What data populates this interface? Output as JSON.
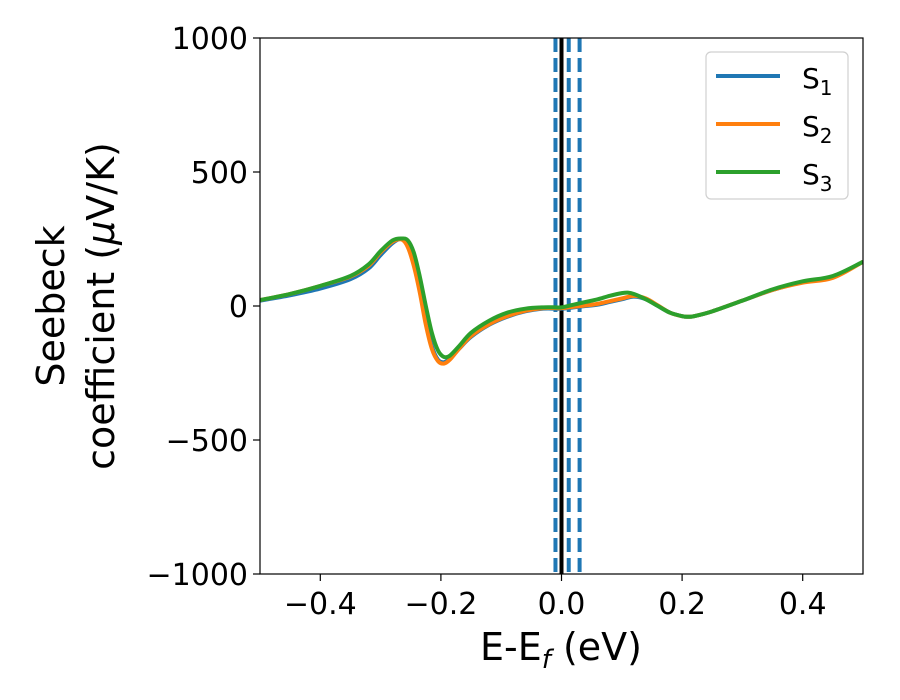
{
  "chart_data": {
    "type": "line",
    "title": "",
    "xlabel": {
      "main": "E-E",
      "sub": "f",
      "unit": " (eV)"
    },
    "ylabel": {
      "line1": "Seebeck",
      "line2_main": "coefficient  (",
      "line2_mu": "μ",
      "line2_unit": "V/K)"
    },
    "xlim": [
      -0.5,
      0.5
    ],
    "ylim": [
      -1000,
      1000
    ],
    "xticks": [
      -0.4,
      -0.2,
      0.0,
      0.2,
      0.4
    ],
    "xtick_labels": [
      "−0.4",
      "−0.2",
      "0.0",
      "0.2",
      "0.4"
    ],
    "yticks": [
      1000,
      500,
      0,
      -500,
      -1000
    ],
    "ytick_labels": [
      "1000",
      "500",
      "0",
      "−500",
      "−1000"
    ],
    "grid": false,
    "legend_placement": "top-right",
    "vlines": [
      {
        "x": -0.01,
        "style": "dashed",
        "color": "#1f77b4"
      },
      {
        "x": 0.012,
        "style": "dashed",
        "color": "#1f77b4"
      },
      {
        "x": 0.03,
        "style": "dashed",
        "color": "#1f77b4"
      },
      {
        "x": 0.0,
        "style": "solid",
        "color": "#000000"
      }
    ],
    "series": [
      {
        "name": "S",
        "sub": "1",
        "color": "#1f77b4",
        "x": [
          -0.5,
          -0.45,
          -0.4,
          -0.35,
          -0.32,
          -0.3,
          -0.28,
          -0.265,
          -0.255,
          -0.245,
          -0.235,
          -0.225,
          -0.215,
          -0.205,
          -0.195,
          -0.185,
          -0.17,
          -0.15,
          -0.12,
          -0.09,
          -0.06,
          -0.03,
          -0.01,
          0.0,
          0.02,
          0.04,
          0.06,
          0.08,
          0.1,
          0.12,
          0.14,
          0.16,
          0.18,
          0.2,
          0.21,
          0.22,
          0.25,
          0.3,
          0.35,
          0.4,
          0.45,
          0.5
        ],
        "y": [
          20,
          40,
          65,
          100,
          140,
          190,
          235,
          250,
          225,
          160,
          60,
          -60,
          -150,
          -200,
          -210,
          -195,
          -160,
          -115,
          -70,
          -40,
          -20,
          -10,
          -10,
          -10,
          -5,
          0,
          5,
          15,
          25,
          35,
          25,
          0,
          -25,
          -38,
          -40,
          -38,
          -20,
          20,
          60,
          90,
          110,
          165
        ]
      },
      {
        "name": "S",
        "sub": "2",
        "color": "#ff7f0e",
        "x": [
          -0.5,
          -0.45,
          -0.4,
          -0.35,
          -0.32,
          -0.3,
          -0.28,
          -0.265,
          -0.255,
          -0.245,
          -0.235,
          -0.225,
          -0.215,
          -0.205,
          -0.195,
          -0.185,
          -0.17,
          -0.15,
          -0.12,
          -0.09,
          -0.06,
          -0.03,
          -0.01,
          0.0,
          0.02,
          0.04,
          0.06,
          0.08,
          0.1,
          0.12,
          0.14,
          0.16,
          0.18,
          0.2,
          0.21,
          0.22,
          0.25,
          0.3,
          0.35,
          0.4,
          0.45,
          0.5
        ],
        "y": [
          22,
          45,
          75,
          110,
          150,
          200,
          240,
          248,
          220,
          150,
          50,
          -70,
          -160,
          -205,
          -215,
          -200,
          -160,
          -112,
          -68,
          -38,
          -18,
          -8,
          -8,
          -8,
          -3,
          2,
          8,
          18,
          28,
          38,
          28,
          2,
          -25,
          -38,
          -40,
          -38,
          -20,
          20,
          60,
          87,
          105,
          165
        ]
      },
      {
        "name": "S",
        "sub": "3",
        "color": "#2ca02c",
        "x": [
          -0.5,
          -0.45,
          -0.4,
          -0.35,
          -0.32,
          -0.3,
          -0.28,
          -0.265,
          -0.255,
          -0.245,
          -0.235,
          -0.225,
          -0.215,
          -0.205,
          -0.195,
          -0.185,
          -0.17,
          -0.15,
          -0.12,
          -0.09,
          -0.06,
          -0.03,
          -0.01,
          0.0,
          0.02,
          0.04,
          0.06,
          0.08,
          0.1,
          0.11,
          0.12,
          0.14,
          0.16,
          0.18,
          0.2,
          0.21,
          0.22,
          0.25,
          0.3,
          0.35,
          0.4,
          0.45,
          0.5
        ],
        "y": [
          22,
          45,
          75,
          112,
          155,
          205,
          245,
          252,
          245,
          200,
          110,
          0,
          -100,
          -165,
          -190,
          -185,
          -150,
          -100,
          -55,
          -25,
          -10,
          -5,
          -5,
          -5,
          5,
          15,
          25,
          38,
          48,
          50,
          45,
          25,
          0,
          -25,
          -38,
          -40,
          -38,
          -20,
          20,
          62,
          92,
          112,
          165
        ]
      }
    ]
  }
}
